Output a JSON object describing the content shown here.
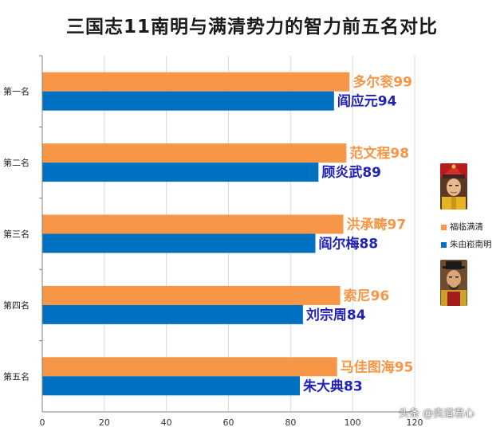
{
  "chart_data": {
    "type": "bar",
    "orientation": "horizontal",
    "title": "三国志11南明与满清势力的智力前五名对比",
    "categories": [
      "第一名",
      "第二名",
      "第三名",
      "第四名",
      "第五名"
    ],
    "series": [
      {
        "name": "福临满清",
        "color": "#f79646",
        "values": [
          99,
          98,
          97,
          96,
          95
        ],
        "labels": [
          "多尔衮99",
          "范文程98",
          "洪承畴97",
          "索尼96",
          "马佳图海95"
        ]
      },
      {
        "name": "朱由崧南明",
        "color": "#0070c0",
        "values": [
          94,
          89,
          88,
          84,
          83
        ],
        "labels": [
          "阎应元94",
          "顾炎武89",
          "阎尔梅88",
          "刘宗周84",
          "朱大典83"
        ]
      }
    ],
    "xlim": [
      0,
      120
    ],
    "xticks": [
      "0",
      "20",
      "40",
      "60",
      "80",
      "100",
      "120"
    ],
    "grid": true,
    "legend_position": "right",
    "label_colors": {
      "qing": "#f79646",
      "ming": "#2222b8"
    }
  },
  "watermark": "头条 @卖道君心"
}
